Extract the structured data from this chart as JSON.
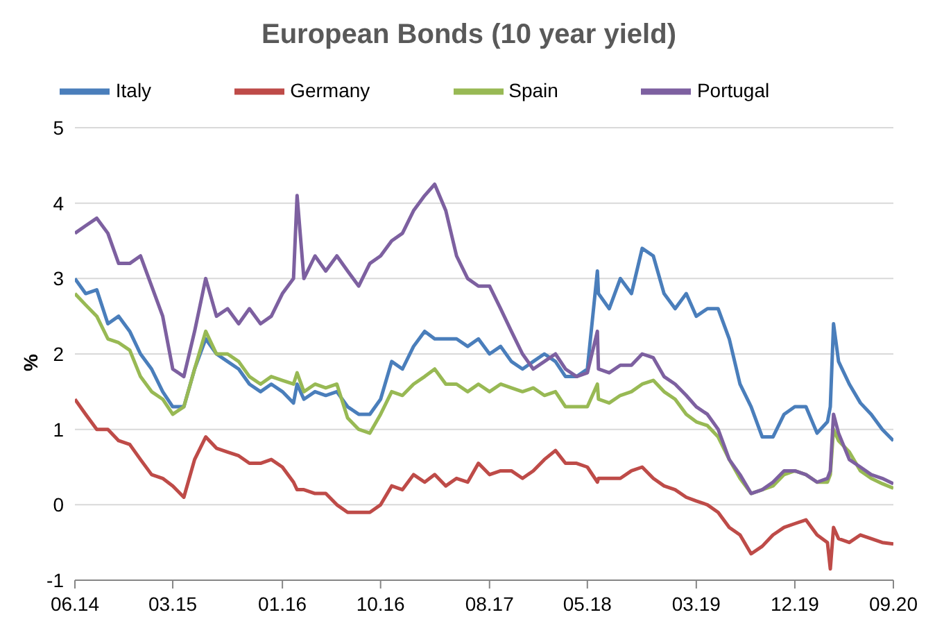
{
  "chart_data": {
    "type": "line",
    "title": "European Bonds (10 year yield)",
    "ylabel": "%",
    "x": [
      "2014-06",
      "2014-07",
      "2014-08",
      "2014-09",
      "2014-10",
      "2014-11",
      "2014-12",
      "2015-01",
      "2015-02",
      "2015-03",
      "2015-04",
      "2015-05",
      "2015-06",
      "2015-07",
      "2015-08",
      "2015-09",
      "2015-10",
      "2015-11",
      "2015-12",
      "2016-01",
      "2016-02",
      "2016-02-11",
      "2016-03",
      "2016-04",
      "2016-05",
      "2016-06",
      "2016-07",
      "2016-08",
      "2016-09",
      "2016-10",
      "2016-11",
      "2016-12",
      "2017-01",
      "2017-02",
      "2017-03",
      "2017-04",
      "2017-05",
      "2017-06",
      "2017-07",
      "2017-08",
      "2017-09",
      "2017-10",
      "2017-11",
      "2017-12",
      "2018-01",
      "2018-02",
      "2018-03",
      "2018-04",
      "2018-05",
      "2018-05-29",
      "2018-06",
      "2018-07",
      "2018-08",
      "2018-09",
      "2018-10",
      "2018-11",
      "2018-12",
      "2019-01",
      "2019-02",
      "2019-03",
      "2019-04",
      "2019-05",
      "2019-06",
      "2019-07",
      "2019-08",
      "2019-09",
      "2019-10",
      "2019-11",
      "2019-12",
      "2020-01",
      "2020-02",
      "2020-03",
      "2020-03-09",
      "2020-03-18",
      "2020-04",
      "2020-05",
      "2020-06",
      "2020-07",
      "2020-08",
      "2020-09"
    ],
    "series": [
      {
        "name": "Italy",
        "color": "#4a7ebb",
        "values": [
          3.0,
          2.8,
          2.85,
          2.4,
          2.5,
          2.3,
          2.0,
          1.8,
          1.5,
          1.3,
          1.3,
          1.8,
          2.2,
          2.0,
          1.9,
          1.8,
          1.6,
          1.5,
          1.6,
          1.5,
          1.35,
          1.6,
          1.4,
          1.5,
          1.45,
          1.5,
          1.3,
          1.2,
          1.2,
          1.4,
          1.9,
          1.8,
          2.1,
          2.3,
          2.2,
          2.2,
          2.2,
          2.1,
          2.2,
          2.0,
          2.1,
          1.9,
          1.8,
          1.9,
          2.0,
          1.9,
          1.7,
          1.7,
          1.8,
          3.1,
          2.8,
          2.6,
          3.0,
          2.8,
          3.4,
          3.3,
          2.8,
          2.6,
          2.8,
          2.5,
          2.6,
          2.6,
          2.2,
          1.6,
          1.3,
          0.9,
          0.9,
          1.2,
          1.3,
          1.3,
          0.95,
          1.1,
          1.3,
          2.4,
          1.9,
          1.6,
          1.35,
          1.2,
          1.0,
          0.85
        ]
      },
      {
        "name": "Germany",
        "color": "#be4b48",
        "values": [
          1.4,
          1.2,
          1.0,
          1.0,
          0.85,
          0.8,
          0.6,
          0.4,
          0.35,
          0.25,
          0.1,
          0.6,
          0.9,
          0.75,
          0.7,
          0.65,
          0.55,
          0.55,
          0.6,
          0.5,
          0.3,
          0.2,
          0.2,
          0.15,
          0.15,
          0.0,
          -0.1,
          -0.1,
          -0.1,
          0.0,
          0.25,
          0.2,
          0.4,
          0.3,
          0.4,
          0.25,
          0.35,
          0.3,
          0.55,
          0.4,
          0.45,
          0.45,
          0.35,
          0.45,
          0.6,
          0.72,
          0.55,
          0.55,
          0.5,
          0.3,
          0.35,
          0.35,
          0.35,
          0.45,
          0.5,
          0.35,
          0.25,
          0.2,
          0.1,
          0.05,
          0.0,
          -0.1,
          -0.3,
          -0.4,
          -0.65,
          -0.55,
          -0.4,
          -0.3,
          -0.25,
          -0.2,
          -0.4,
          -0.5,
          -0.85,
          -0.3,
          -0.45,
          -0.5,
          -0.4,
          -0.45,
          -0.5,
          -0.52
        ]
      },
      {
        "name": "Spain",
        "color": "#98b954",
        "values": [
          2.8,
          2.65,
          2.5,
          2.2,
          2.15,
          2.05,
          1.7,
          1.5,
          1.4,
          1.2,
          1.3,
          1.8,
          2.3,
          2.0,
          2.0,
          1.9,
          1.7,
          1.6,
          1.7,
          1.65,
          1.6,
          1.75,
          1.5,
          1.6,
          1.55,
          1.6,
          1.15,
          1.0,
          0.95,
          1.2,
          1.5,
          1.45,
          1.6,
          1.7,
          1.8,
          1.6,
          1.6,
          1.5,
          1.6,
          1.5,
          1.6,
          1.55,
          1.5,
          1.55,
          1.45,
          1.5,
          1.3,
          1.3,
          1.3,
          1.6,
          1.4,
          1.35,
          1.45,
          1.5,
          1.6,
          1.65,
          1.5,
          1.4,
          1.2,
          1.1,
          1.05,
          0.9,
          0.6,
          0.35,
          0.15,
          0.2,
          0.25,
          0.4,
          0.45,
          0.4,
          0.3,
          0.3,
          0.4,
          1.0,
          0.85,
          0.7,
          0.45,
          0.35,
          0.28,
          0.22
        ]
      },
      {
        "name": "Portugal",
        "color": "#7d60a0",
        "values": [
          3.6,
          3.7,
          3.8,
          3.6,
          3.2,
          3.2,
          3.3,
          2.9,
          2.5,
          1.8,
          1.7,
          2.3,
          3.0,
          2.5,
          2.6,
          2.4,
          2.6,
          2.4,
          2.5,
          2.8,
          3.0,
          4.1,
          3.0,
          3.3,
          3.1,
          3.3,
          3.1,
          2.9,
          3.2,
          3.3,
          3.5,
          3.6,
          3.9,
          4.1,
          4.25,
          3.9,
          3.3,
          3.0,
          2.9,
          2.9,
          2.6,
          2.3,
          2.0,
          1.8,
          1.9,
          2.0,
          1.8,
          1.7,
          1.75,
          2.3,
          1.8,
          1.75,
          1.85,
          1.85,
          2.0,
          1.95,
          1.7,
          1.6,
          1.45,
          1.3,
          1.2,
          1.0,
          0.6,
          0.4,
          0.15,
          0.2,
          0.3,
          0.45,
          0.45,
          0.4,
          0.3,
          0.35,
          0.45,
          1.2,
          0.95,
          0.6,
          0.5,
          0.4,
          0.35,
          0.28
        ]
      }
    ],
    "xlim": [
      "2014-06",
      "2020-09"
    ],
    "xticks": [
      {
        "value": "2014-06",
        "label": "06.14"
      },
      {
        "value": "2015-03",
        "label": "03.15"
      },
      {
        "value": "2016-01",
        "label": "01.16"
      },
      {
        "value": "2016-10",
        "label": "10.16"
      },
      {
        "value": "2017-08",
        "label": "08.17"
      },
      {
        "value": "2018-05",
        "label": "05.18"
      },
      {
        "value": "2019-03",
        "label": "03.19"
      },
      {
        "value": "2019-12",
        "label": "12.19"
      },
      {
        "value": "2020-09",
        "label": "09.20"
      }
    ],
    "ylim": [
      -1,
      5
    ],
    "yticks": [
      -1,
      0,
      1,
      2,
      3,
      4,
      5
    ],
    "grid": "y",
    "legend": "top",
    "marker": "none",
    "line_style": "solid"
  }
}
